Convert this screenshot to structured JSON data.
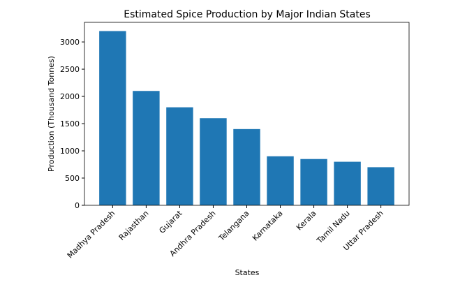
{
  "chart_data": {
    "type": "bar",
    "title": "Estimated Spice Production by Major Indian States",
    "xlabel": "States",
    "ylabel": "Production (Thousand Tonnes)",
    "categories": [
      "Madhya Pradesh",
      "Rajasthan",
      "Gujarat",
      "Andhra Pradesh",
      "Telangana",
      "Karnataka",
      "Kerala",
      "Tamil Nadu",
      "Uttar Pradesh"
    ],
    "values": [
      3200,
      2100,
      1800,
      1600,
      1400,
      900,
      850,
      800,
      700
    ],
    "color": "#1f77b4",
    "ylim": [
      0,
      3360
    ],
    "yticks": [
      0,
      500,
      1000,
      1500,
      2000,
      2500,
      3000
    ],
    "grid": false
  }
}
